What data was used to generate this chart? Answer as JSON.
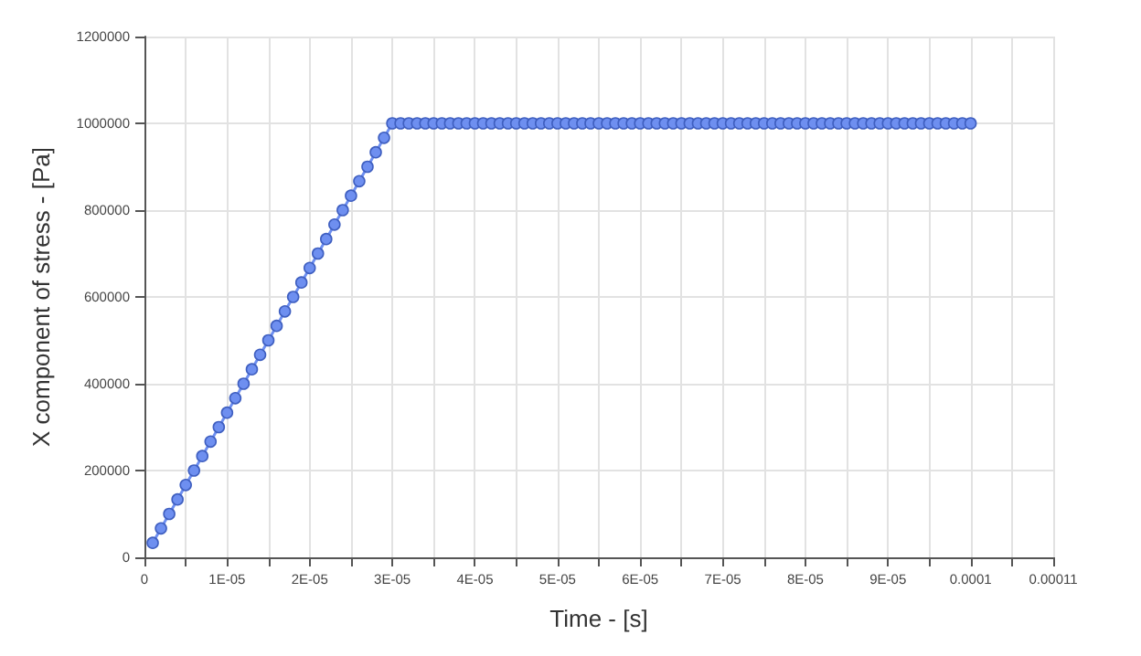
{
  "chart_data": {
    "type": "line",
    "xlabel": "Time - [s]",
    "ylabel": "X component of stress - [Pa]",
    "x": [
      1e-06,
      2e-06,
      3e-06,
      4e-06,
      5e-06,
      6e-06,
      7e-06,
      8e-06,
      9e-06,
      1e-05,
      1.1e-05,
      1.2e-05,
      1.3e-05,
      1.4e-05,
      1.5e-05,
      1.6e-05,
      1.7e-05,
      1.8e-05,
      1.9e-05,
      2e-05,
      2.1e-05,
      2.2e-05,
      2.3e-05,
      2.4e-05,
      2.5e-05,
      2.6e-05,
      2.7e-05,
      2.8e-05,
      2.9e-05,
      3e-05,
      3.1e-05,
      3.2e-05,
      3.3e-05,
      3.4e-05,
      3.5e-05,
      3.6e-05,
      3.7e-05,
      3.8e-05,
      3.9e-05,
      4e-05,
      4.1e-05,
      4.2e-05,
      4.3e-05,
      4.4e-05,
      4.5e-05,
      4.6e-05,
      4.7e-05,
      4.8e-05,
      4.9e-05,
      5e-05,
      5.1e-05,
      5.2e-05,
      5.3e-05,
      5.4e-05,
      5.5e-05,
      5.6e-05,
      5.7e-05,
      5.8e-05,
      5.9e-05,
      6e-05,
      6.1e-05,
      6.2e-05,
      6.3e-05,
      6.4e-05,
      6.5e-05,
      6.6e-05,
      6.7e-05,
      6.8e-05,
      6.9e-05,
      7e-05,
      7.1e-05,
      7.2e-05,
      7.3e-05,
      7.4e-05,
      7.5e-05,
      7.6e-05,
      7.7e-05,
      7.8e-05,
      7.9e-05,
      8e-05,
      8.1e-05,
      8.2e-05,
      8.3e-05,
      8.4e-05,
      8.5e-05,
      8.6e-05,
      8.7e-05,
      8.8e-05,
      8.9e-05,
      9e-05,
      9.1e-05,
      9.2e-05,
      9.3e-05,
      9.4e-05,
      9.5e-05,
      9.6e-05,
      9.7e-05,
      9.8e-05,
      9.9e-05,
      0.0001
    ],
    "series": [
      {
        "color": "#6e8ff0",
        "values": [
          33333,
          66667,
          100000,
          133333,
          166667,
          200000,
          233333,
          266667,
          300000,
          333333,
          366667,
          400000,
          433333,
          466667,
          500000,
          533333,
          566667,
          600000,
          633333,
          666667,
          700000,
          733333,
          766667,
          800000,
          833333,
          866667,
          900000,
          933333,
          966667,
          1000000,
          1000000,
          1000000,
          1000000,
          1000000,
          1000000,
          1000000,
          1000000,
          1000000,
          1000000,
          1000000,
          1000000,
          1000000,
          1000000,
          1000000,
          1000000,
          1000000,
          1000000,
          1000000,
          1000000,
          1000000,
          1000000,
          1000000,
          1000000,
          1000000,
          1000000,
          1000000,
          1000000,
          1000000,
          1000000,
          1000000,
          1000000,
          1000000,
          1000000,
          1000000,
          1000000,
          1000000,
          1000000,
          1000000,
          1000000,
          1000000,
          1000000,
          1000000,
          1000000,
          1000000,
          1000000,
          1000000,
          1000000,
          1000000,
          1000000,
          1000000,
          1000000,
          1000000,
          1000000,
          1000000,
          1000000,
          1000000,
          1000000,
          1000000,
          1000000,
          1000000,
          1000000,
          1000000,
          1000000,
          1000000,
          1000000,
          1000000,
          1000000,
          1000000,
          1000000,
          1000000
        ]
      }
    ],
    "xlim": [
      0,
      0.00011
    ],
    "xticks": [
      {
        "value": 0,
        "label": "0"
      },
      {
        "value": 5e-06,
        "label": null
      },
      {
        "value": 1e-05,
        "label": "1E-05"
      },
      {
        "value": 1.5e-05,
        "label": null
      },
      {
        "value": 2e-05,
        "label": "2E-05"
      },
      {
        "value": 2.5e-05,
        "label": null
      },
      {
        "value": 3e-05,
        "label": "3E-05"
      },
      {
        "value": 3.5e-05,
        "label": null
      },
      {
        "value": 4e-05,
        "label": "4E-05"
      },
      {
        "value": 4.5e-05,
        "label": null
      },
      {
        "value": 5e-05,
        "label": "5E-05"
      },
      {
        "value": 5.5e-05,
        "label": null
      },
      {
        "value": 6e-05,
        "label": "6E-05"
      },
      {
        "value": 6.5e-05,
        "label": null
      },
      {
        "value": 7e-05,
        "label": "7E-05"
      },
      {
        "value": 7.5e-05,
        "label": null
      },
      {
        "value": 8e-05,
        "label": "8E-05"
      },
      {
        "value": 8.5e-05,
        "label": null
      },
      {
        "value": 9e-05,
        "label": "9E-05"
      },
      {
        "value": 9.5e-05,
        "label": null
      },
      {
        "value": 0.0001,
        "label": "0.0001"
      },
      {
        "value": 0.000105,
        "label": null
      },
      {
        "value": 0.00011,
        "label": "0.00011"
      }
    ],
    "ylim": [
      0,
      1200000
    ],
    "yticks": [
      0,
      200000,
      400000,
      600000,
      800000,
      1000000,
      1200000
    ],
    "grid": true,
    "marker": "circle",
    "line_style": "solid"
  }
}
